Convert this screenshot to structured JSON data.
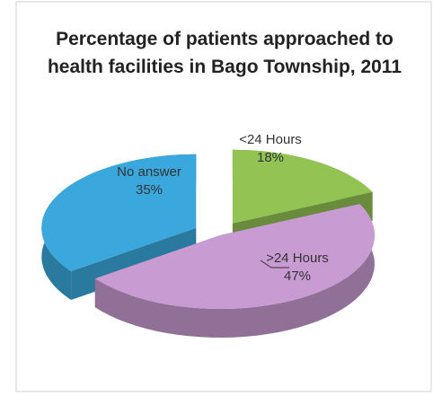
{
  "chart_data": {
    "type": "pie",
    "title": "Percentage of patients approached to health facilities in Bago Township, 2011",
    "categories": [
      "<24 Hours",
      ">24 Hours",
      "No answer"
    ],
    "values": [
      18,
      47,
      35
    ],
    "value_labels": [
      "18%",
      "47%",
      "35%"
    ],
    "colors": [
      "#92c353",
      "#c99bd3",
      "#3ba8dd"
    ]
  }
}
